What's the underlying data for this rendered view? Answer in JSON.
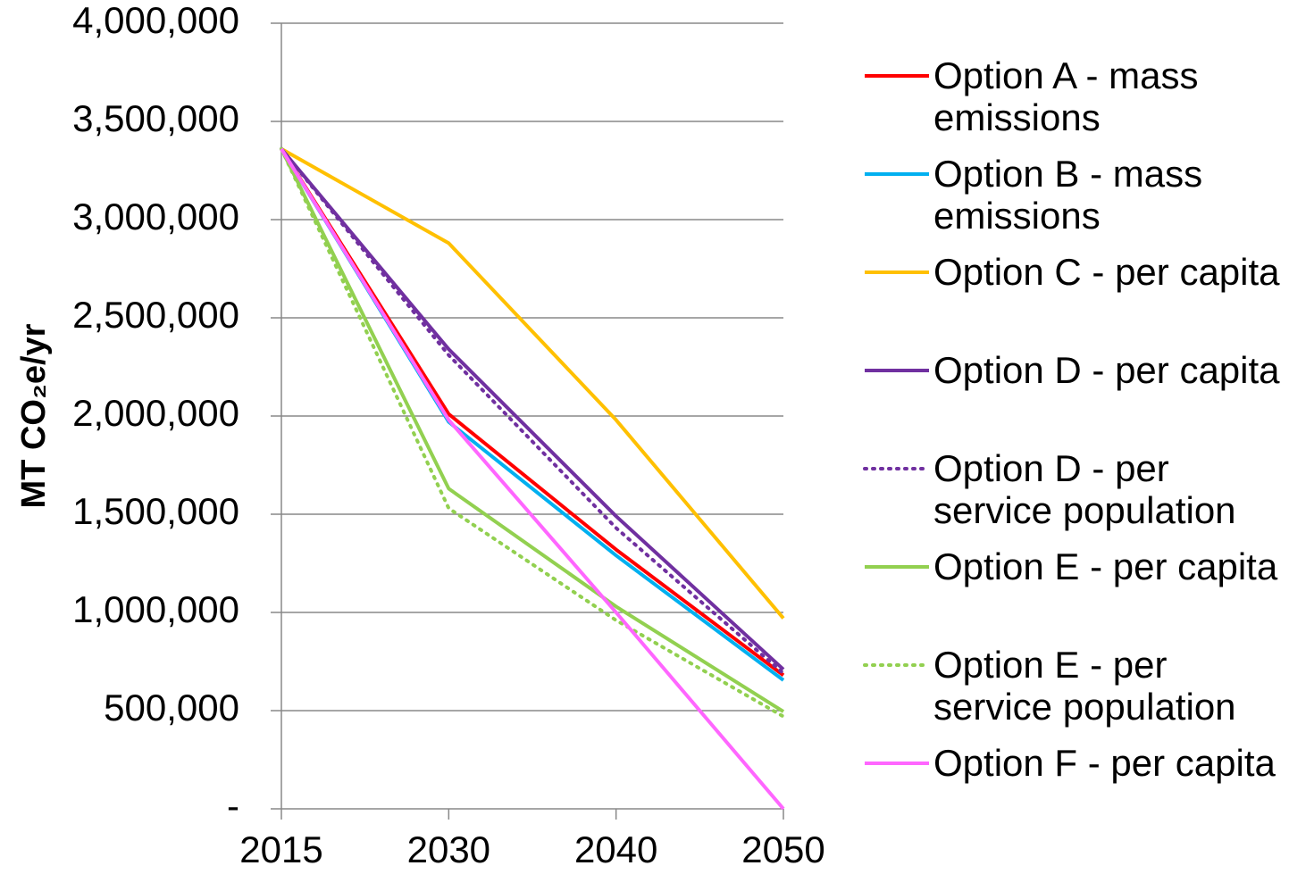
{
  "chart_data": {
    "type": "line",
    "y_label": "MT CO₂e/yr",
    "categories": [
      "2015",
      "2030",
      "2040",
      "2050"
    ],
    "ylim": [
      0,
      4000000
    ],
    "yticks": [
      {
        "value": 0,
        "label": "-"
      },
      {
        "value": 500000,
        "label": "500,000"
      },
      {
        "value": 1000000,
        "label": "1,000,000"
      },
      {
        "value": 1500000,
        "label": "1,500,000"
      },
      {
        "value": 2000000,
        "label": "2,000,000"
      },
      {
        "value": 2500000,
        "label": "2,500,000"
      },
      {
        "value": 3000000,
        "label": "3,000,000"
      },
      {
        "value": 3500000,
        "label": "3,500,000"
      },
      {
        "value": 4000000,
        "label": "4,000,000"
      }
    ],
    "grid": true,
    "legend": "right",
    "series": [
      {
        "name": "Option A - mass emissions",
        "color": "#ff0000",
        "dotted": false,
        "values": [
          3360000,
          2010000,
          1320000,
          680000
        ]
      },
      {
        "name": "Option B - mass emissions",
        "color": "#00b0f0",
        "dotted": false,
        "values": [
          3360000,
          1970000,
          1290000,
          655000
        ]
      },
      {
        "name": "Option C - per capita",
        "color": "#ffc000",
        "dotted": false,
        "values": [
          3360000,
          2880000,
          1980000,
          970000
        ]
      },
      {
        "name": "Option D - per capita",
        "color": "#7030a0",
        "dotted": false,
        "values": [
          3360000,
          2340000,
          1490000,
          710000
        ]
      },
      {
        "name": "Option D - per service population",
        "color": "#7030a0",
        "dotted": true,
        "values": [
          3360000,
          2310000,
          1430000,
          690000
        ]
      },
      {
        "name": "Option E - per capita",
        "color": "#92d050",
        "dotted": false,
        "values": [
          3360000,
          1630000,
          1030000,
          495000
        ]
      },
      {
        "name": "Option E - per service population",
        "color": "#92d050",
        "dotted": true,
        "values": [
          3360000,
          1530000,
          960000,
          470000
        ]
      },
      {
        "name": "Option F - per capita",
        "color": "#ff66ff",
        "dotted": false,
        "values": [
          3360000,
          1980000,
          1000000,
          0
        ]
      }
    ]
  }
}
